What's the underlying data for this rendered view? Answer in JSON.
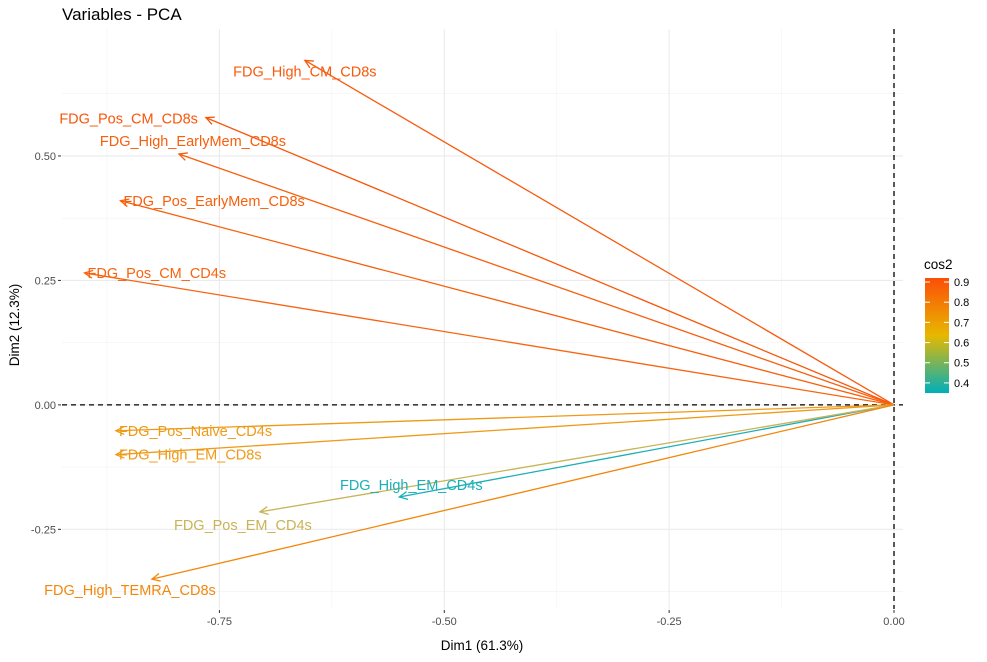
{
  "chart_data": {
    "type": "scatter",
    "subtype": "pca-variable-arrows",
    "title": "Variables - PCA",
    "xlabel": "Dim1 (61.3%)",
    "ylabel": "Dim2 (12.3%)",
    "xlim": [
      -0.925,
      0.01
    ],
    "ylim": [
      -0.41,
      0.755
    ],
    "x_ticks": [
      -0.75,
      -0.5,
      -0.25,
      0.0
    ],
    "x_tick_labels": [
      "-0.75",
      "-0.50",
      "-0.25",
      "0.00"
    ],
    "y_ticks": [
      -0.25,
      0.0,
      0.25,
      0.5
    ],
    "y_tick_labels": [
      "-0.25",
      "0.00",
      "0.25",
      "0.50"
    ],
    "grid": true,
    "reference_lines": {
      "x": 0,
      "y": 0,
      "style": "dashed"
    },
    "legend": {
      "title": "cos2",
      "position": "right",
      "breaks": [
        0.9,
        0.8,
        0.7,
        0.6,
        0.5,
        0.4
      ],
      "range": [
        0.35,
        0.92
      ],
      "gradient": [
        "#00AFBB",
        "#E7B800",
        "#FC4E07"
      ]
    },
    "variables": [
      {
        "name": "FDG_High_CM_CD8s",
        "x": -0.655,
        "y": 0.692,
        "cos2": 0.91,
        "color": "#F85A0C"
      },
      {
        "name": "FDG_Pos_CM_CD8s",
        "x": -0.765,
        "y": 0.577,
        "cos2": 0.92,
        "color": "#F8560A"
      },
      {
        "name": "FDG_High_EarlyMem_CD8s",
        "x": -0.795,
        "y": 0.504,
        "cos2": 0.9,
        "color": "#F85E0B"
      },
      {
        "name": "FDG_Pos_EarlyMem_CD8s",
        "x": -0.86,
        "y": 0.41,
        "cos2": 0.9,
        "color": "#F85F0B"
      },
      {
        "name": "FDG_Pos_CM_CD4s",
        "x": -0.9,
        "y": 0.265,
        "cos2": 0.89,
        "color": "#F86410"
      },
      {
        "name": "FDG_Pos_Naive_CD4s",
        "x": -0.865,
        "y": -0.052,
        "cos2": 0.73,
        "color": "#EE9A17"
      },
      {
        "name": "FDG_High_EM_CD8s",
        "x": -0.865,
        "y": -0.1,
        "cos2": 0.74,
        "color": "#EE9A17"
      },
      {
        "name": "FDG_High_EM_CD4s",
        "x": -0.55,
        "y": -0.185,
        "cos2": 0.35,
        "color": "#1AAFB8"
      },
      {
        "name": "FDG_Pos_EM_CD4s",
        "x": -0.705,
        "y": -0.215,
        "cos2": 0.55,
        "color": "#C8B355"
      },
      {
        "name": "FDG_High_TEMRA_CD8s",
        "x": -0.825,
        "y": -0.35,
        "cos2": 0.79,
        "color": "#F2870C"
      }
    ]
  }
}
